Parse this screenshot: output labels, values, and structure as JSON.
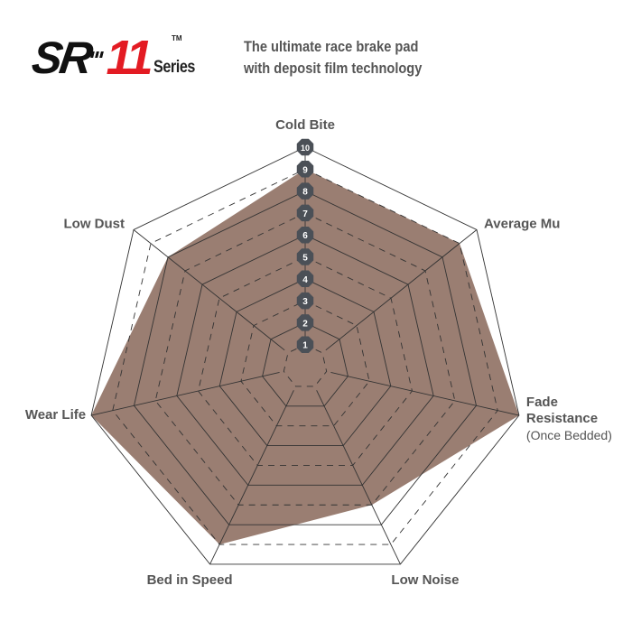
{
  "logo": {
    "sr": "SR",
    "eleven": "11",
    "tm": "TM",
    "series": "Series"
  },
  "tagline": [
    "The ultimate race brake pad",
    "with deposit film technology"
  ],
  "colors": {
    "fill": "#9a7e72",
    "grid": "#333333",
    "badge": "#4b5057",
    "label": "#555555",
    "accent_red": "#e31b23"
  },
  "chart_data": {
    "type": "radar",
    "axes": [
      {
        "label": "Cold Bite",
        "sub": "",
        "value": 9
      },
      {
        "label": "Average Mu",
        "sub": "",
        "value": 9
      },
      {
        "label": "Fade Resistance",
        "sub": "(Once Bedded)",
        "value": 10
      },
      {
        "label": "Low Noise",
        "sub": "",
        "value": 7
      },
      {
        "label": "Bed in Speed",
        "sub": "",
        "value": 9
      },
      {
        "label": "Wear Life",
        "sub": "",
        "value": 10
      },
      {
        "label": "Low Dust",
        "sub": "",
        "value": 8
      }
    ],
    "range": [
      0,
      10
    ],
    "ticks": [
      "1",
      "2",
      "3",
      "4",
      "5",
      "6",
      "7",
      "8",
      "9",
      "10"
    ],
    "grid": true
  }
}
